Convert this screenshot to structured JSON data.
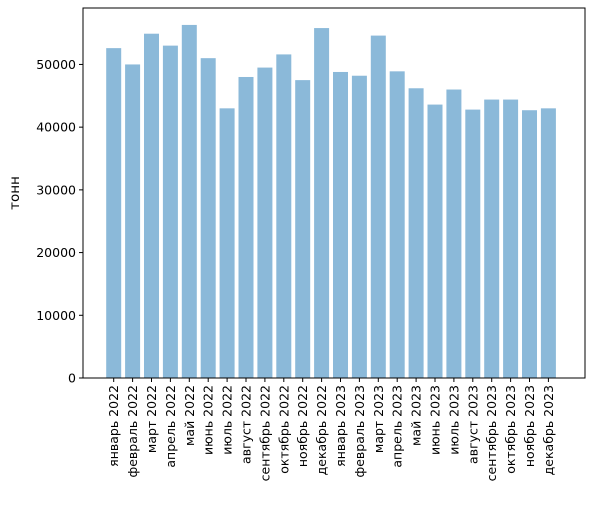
{
  "chart_data": {
    "type": "bar",
    "categories": [
      "январь 2022",
      "февраль 2022",
      "март 2022",
      "апрель 2022",
      "май 2022",
      "июнь 2022",
      "июль 2022",
      "август 2022",
      "сентябрь 2022",
      "октябрь 2022",
      "ноябрь 2022",
      "декабрь 2022",
      "январь 2023",
      "февраль 2023",
      "март 2023",
      "апрель 2023",
      "май 2023",
      "июнь 2023",
      "июль 2023",
      "август 2023",
      "сентябрь 2023",
      "октябрь 2023",
      "ноябрь 2023",
      "декабрь 2023"
    ],
    "values": [
      52600,
      50000,
      54900,
      53000,
      56300,
      51000,
      43000,
      48000,
      49500,
      51600,
      47500,
      55800,
      48800,
      48200,
      54600,
      48900,
      46200,
      43600,
      46000,
      42800,
      44400,
      44400,
      42700,
      43000
    ],
    "title": "",
    "xlabel": "",
    "ylabel": "тонн",
    "ylim": [
      0,
      59000
    ],
    "yticks": [
      0,
      10000,
      20000,
      30000,
      40000,
      50000
    ],
    "grid": false,
    "bar_color": "#8bb9d9",
    "axis_color": "#000000"
  }
}
